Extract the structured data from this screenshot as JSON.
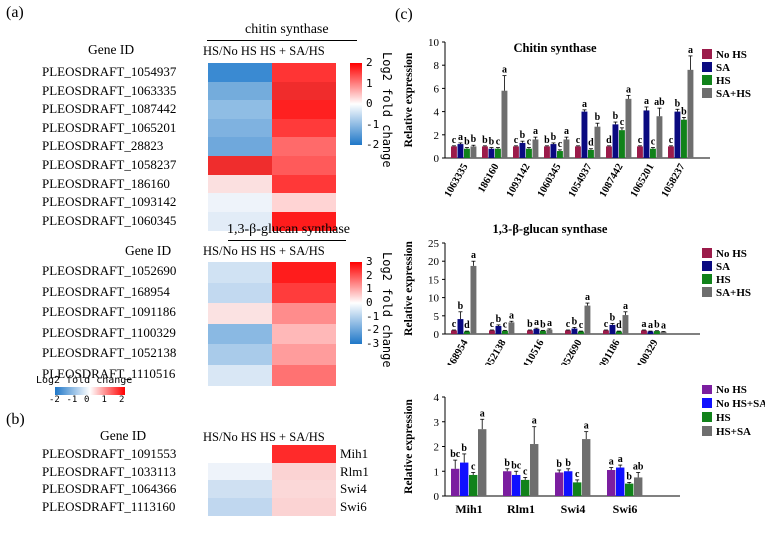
{
  "panels": {
    "a": "(a)",
    "b": "(b)",
    "c": "(c)"
  },
  "heatmaps": [
    {
      "title": "chitin synthase",
      "gene_header": "Gene ID",
      "col_header": "HS/No  HS  HS + SA/HS",
      "colorbar_title": "Log2 fold change",
      "colorbar_ticks": [
        "2",
        "1",
        "0",
        "-1",
        "-2"
      ],
      "rows": [
        "PLEOSDRAFT_1054937",
        "PLEOSDRAFT_1063335",
        "PLEOSDRAFT_1087442",
        "PLEOSDRAFT_1065201",
        "PLEOSDRAFT_28823",
        "PLEOSDRAFT_1058237",
        "PLEOSDRAFT_186160",
        "PLEOSDRAFT_1093142",
        "PLEOSDRAFT_1060345"
      ],
      "col1": [
        "#3a8ad2",
        "#74acdc",
        "#8fbde4",
        "#7fb2e0",
        "#6fa8dc",
        "#ef2d2d",
        "#fbe0e0",
        "#eef3fa",
        "#e2ecf7"
      ],
      "col2": [
        "#ff3434",
        "#f02c2c",
        "#ff2020",
        "#ff3a3a",
        "#ff6a6a",
        "#ff5a5a",
        "#ff3838",
        "#ffd4d4",
        "#ff1c1c"
      ]
    },
    {
      "title": "1,3-β-glucan synthase",
      "gene_header": "Gene ID",
      "col_header": "HS/No  HS  HS + SA/HS",
      "colorbar_title": "Log2 fold change",
      "colorbar_ticks": [
        "3",
        "2",
        "1",
        "0",
        "-1",
        "-2",
        "-3"
      ],
      "rows": [
        "PLEOSDRAFT_1052690",
        "PLEOSDRAFT_168954",
        "PLEOSDRAFT_1091186",
        "PLEOSDRAFT_1100329",
        "PLEOSDRAFT_1052138",
        "PLEOSDRAFT_1110516"
      ],
      "col1": [
        "#d0e2f3",
        "#c2d9f0",
        "#fbe2e2",
        "#8ab9e3",
        "#a9cbea",
        "#d9e7f5"
      ],
      "col2": [
        "#ff1c1c",
        "#ff3c3c",
        "#ff8c8c",
        "#ffb8b8",
        "#ff9c9c",
        "#ff7272"
      ]
    },
    {
      "gene_header": "Gene ID",
      "col_header": "HS/No  HS  HS + SA/HS",
      "colorbar_title": "Log2 fold change",
      "colorbar_ticks": [
        "-2",
        "-1",
        "0",
        "1",
        "2"
      ],
      "rows": [
        "PLEOSDRAFT_1091553",
        "PLEOSDRAFT_1033113",
        "PLEOSDRAFT_1064366",
        "PLEOSDRAFT_1113160"
      ],
      "right_labels": [
        "Mih1",
        "Rlm1",
        "Swi4",
        "Swi6"
      ],
      "col1": [
        "#ffffff",
        "#eef3fa",
        "#cfe0f2",
        "#c0d7ef"
      ],
      "col2": [
        "#ff2a2a",
        "#fbd3d3",
        "#fbd8d8",
        "#fbd3d3"
      ]
    }
  ],
  "chart_data": [
    {
      "type": "bar",
      "title": "Chitin synthase",
      "ylabel": "Relative expression",
      "ylim": [
        0,
        10
      ],
      "yticks": [
        "0",
        "2",
        "4",
        "6",
        "8",
        "10"
      ],
      "categories": [
        "1063335",
        "186160",
        "1093142",
        "1060345",
        "1054937",
        "1087442",
        "1065201",
        "1058237"
      ],
      "series": [
        {
          "name": "No HS",
          "color": "#9b1b4a",
          "values": [
            1.0,
            1.0,
            1.0,
            1.0,
            1.0,
            1.0,
            1.0,
            1.0
          ],
          "err": [
            0.05,
            0.05,
            0.05,
            0.05,
            0.05,
            0.05,
            0.05,
            0.05
          ],
          "letters": [
            "c",
            "b",
            "c",
            "b",
            "c",
            "d",
            "c",
            "c"
          ]
        },
        {
          "name": "SA",
          "color": "#0a0a80",
          "values": [
            1.2,
            0.8,
            1.3,
            1.2,
            4.0,
            2.9,
            4.1,
            4.0
          ],
          "err": [
            0.1,
            0.1,
            0.15,
            0.1,
            0.15,
            0.2,
            0.3,
            0.2
          ],
          "letters": [
            "a",
            "b",
            "b",
            "b",
            "a",
            "b",
            "a",
            "b"
          ]
        },
        {
          "name": "HS",
          "color": "#11821a",
          "values": [
            0.8,
            0.8,
            0.8,
            0.6,
            0.7,
            2.4,
            0.8,
            3.3
          ],
          "err": [
            0.1,
            0.1,
            0.1,
            0.1,
            0.1,
            0.2,
            0.1,
            0.2
          ],
          "letters": [
            "b",
            "c",
            "c",
            "c",
            "d",
            "c",
            "c",
            "b"
          ]
        },
        {
          "name": "SA+HS",
          "color": "#6e6e6e",
          "values": [
            1.0,
            5.8,
            1.6,
            1.6,
            2.7,
            5.1,
            3.6,
            7.6
          ],
          "err": [
            0.1,
            1.3,
            0.2,
            0.2,
            0.3,
            0.3,
            0.7,
            1.2
          ],
          "letters": [
            "b",
            "a",
            "a",
            "a",
            "b",
            "a",
            "ab",
            "a"
          ]
        }
      ]
    },
    {
      "type": "bar",
      "title": "1,3-β-glucan synthase",
      "ylabel": "Relative expression",
      "ylim": [
        0,
        25
      ],
      "yticks": [
        "0",
        "5",
        "10",
        "15",
        "20",
        "25"
      ],
      "categories": [
        "168954",
        "1052138",
        "1110516",
        "1052690",
        "1091186",
        "1100329"
      ],
      "series": [
        {
          "name": "No HS",
          "color": "#9b1b4a",
          "values": [
            1.0,
            1.0,
            1.0,
            1.0,
            1.0,
            1.0
          ],
          "err": [
            0.1,
            0.1,
            0.1,
            0.1,
            0.1,
            0.1
          ],
          "letters": [
            "c",
            "c",
            "b",
            "c",
            "c",
            "a"
          ]
        },
        {
          "name": "SA",
          "color": "#0a0a80",
          "values": [
            4.1,
            2.2,
            1.4,
            1.5,
            2.5,
            0.7
          ],
          "err": [
            2.0,
            0.3,
            0.2,
            0.3,
            0.4,
            0.1
          ],
          "letters": [
            "b",
            "b",
            "a",
            "b",
            "b",
            "a"
          ]
        },
        {
          "name": "HS",
          "color": "#11821a",
          "values": [
            0.7,
            0.9,
            0.9,
            0.7,
            0.7,
            0.8
          ],
          "err": [
            0.1,
            0.1,
            0.1,
            0.1,
            0.1,
            0.1
          ],
          "letters": [
            "d",
            "c",
            "b",
            "c",
            "d",
            "b"
          ]
        },
        {
          "name": "SA+HS",
          "color": "#6e6e6e",
          "values": [
            18.7,
            3.2,
            1.2,
            7.8,
            5.2,
            0.6
          ],
          "err": [
            1.3,
            0.3,
            0.2,
            0.7,
            0.9,
            0.1
          ],
          "letters": [
            "a",
            "a",
            "a",
            "a",
            "a",
            "a"
          ]
        }
      ]
    },
    {
      "type": "bar",
      "title": "",
      "ylabel": "Relative expression",
      "ylim": [
        0,
        4
      ],
      "yticks": [
        "0",
        "1",
        "2",
        "3",
        "4"
      ],
      "categories": [
        "Mih1",
        "Rlm1",
        "Swi4",
        "Swi6"
      ],
      "series": [
        {
          "name": "No HS",
          "color": "#7b1ea0",
          "values": [
            1.1,
            1.0,
            0.95,
            1.05
          ],
          "err": [
            0.35,
            0.1,
            0.1,
            0.1
          ],
          "letters": [
            "bc",
            "b",
            "b",
            "a"
          ]
        },
        {
          "name": "No HS+SA",
          "color": "#1010ff",
          "values": [
            1.35,
            0.85,
            1.0,
            1.15
          ],
          "err": [
            0.35,
            0.15,
            0.1,
            0.1
          ],
          "letters": [
            "b",
            "bc",
            "b",
            "a"
          ]
        },
        {
          "name": "HS",
          "color": "#11821a",
          "values": [
            0.85,
            0.65,
            0.55,
            0.5
          ],
          "err": [
            0.1,
            0.1,
            0.1,
            0.05
          ],
          "letters": [
            "c",
            "c",
            "c",
            "b"
          ]
        },
        {
          "name": "HS+SA",
          "color": "#6e6e6e",
          "values": [
            2.7,
            2.1,
            2.3,
            0.75
          ],
          "err": [
            0.4,
            0.7,
            0.3,
            0.2
          ],
          "letters": [
            "a",
            "a",
            "a",
            "ab"
          ]
        }
      ]
    }
  ]
}
